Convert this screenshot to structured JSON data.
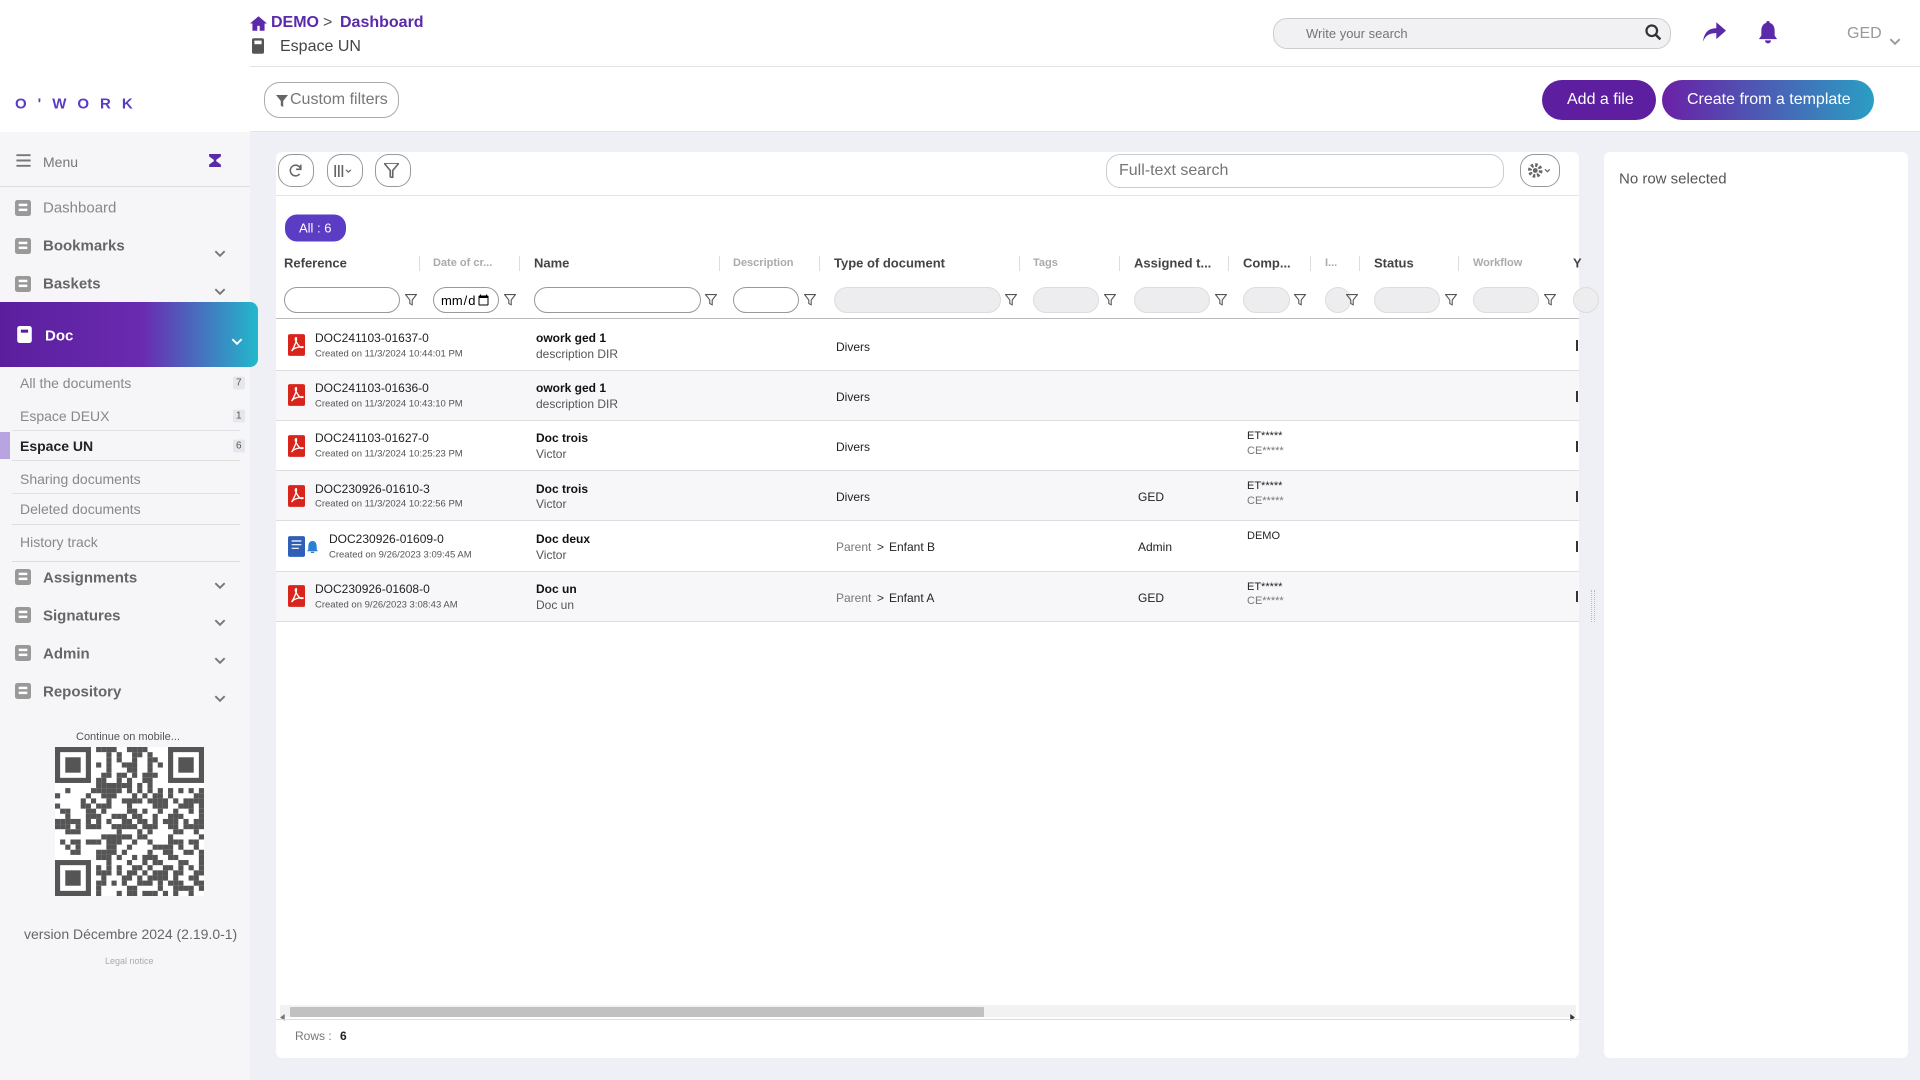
{
  "logo": "O'WORK",
  "header": {
    "breadcrumb": [
      "DEMO",
      ">",
      "Dashboard"
    ],
    "space": "Espace UN",
    "search_placeholder": "Write your search",
    "user": "GED"
  },
  "toolbar": {
    "custom_filters": "Custom filters",
    "add_file": "Add a file",
    "create_template": "Create from a template"
  },
  "sidebar": {
    "menu": "Menu",
    "items_before": [
      {
        "label": "Dashboard"
      },
      {
        "label": "Bookmarks"
      },
      {
        "label": "Baskets"
      }
    ],
    "active": "Doc",
    "doc_items": [
      {
        "label": "All the documents",
        "count": 7
      },
      {
        "label": "Espace DEUX",
        "count": 1
      },
      {
        "label": "Espace UN",
        "count": 6
      },
      {
        "label": "Sharing documents"
      },
      {
        "label": "Deleted documents"
      },
      {
        "label": "History track"
      }
    ],
    "items_after": [
      {
        "label": "Assignments"
      },
      {
        "label": "Signatures"
      },
      {
        "label": "Admin"
      },
      {
        "label": "Repository"
      }
    ],
    "mobile": "Continue on mobile...",
    "version": "version Décembre 2024 (2.19.0-1)",
    "legal": "Legal notice"
  },
  "grid": {
    "search_placeholder": "Full-text search",
    "all_badge": "All : 6",
    "separator": ">",
    "columns": [
      "Reference",
      "Date of cr...",
      "Name",
      "Description",
      "Type of document",
      "Tags",
      "Assigned t...",
      "Comp...",
      "I...",
      "Status",
      "Workflow",
      "Y"
    ],
    "rows": [
      {
        "reference": "DOC241103-01637-0",
        "created": "Created on 11/3/2024 10:44:01 PM",
        "name": "owork ged 1",
        "description": "description DIR",
        "type_path": [
          "Divers"
        ],
        "assigned": null,
        "company": [],
        "file_type": "pdf",
        "alert": false
      },
      {
        "reference": "DOC241103-01636-0",
        "created": "Created on 11/3/2024 10:43:10 PM",
        "name": "owork ged 1",
        "description": "description DIR",
        "type_path": [
          "Divers"
        ],
        "assigned": null,
        "company": [],
        "file_type": "pdf",
        "alert": false
      },
      {
        "reference": "DOC241103-01627-0",
        "created": "Created on 11/3/2024 10:25:23 PM",
        "name": "Doc trois",
        "description": "Victor",
        "type_path": [
          "Divers"
        ],
        "assigned": null,
        "company": [
          "ET*****",
          "CE*****"
        ],
        "file_type": "pdf",
        "alert": false
      },
      {
        "reference": "DOC230926-01610-3",
        "created": "Created on 11/3/2024 10:22:56 PM",
        "name": "Doc trois",
        "description": "Victor",
        "type_path": [
          "Divers"
        ],
        "assigned": "GED",
        "company": [
          "ET*****",
          "CE*****"
        ],
        "file_type": "pdf",
        "alert": false
      },
      {
        "reference": "DOC230926-01609-0",
        "created": "Created on 9/26/2023 3:09:45 AM",
        "name": "Doc deux",
        "description": "Victor",
        "type_path": [
          "Parent",
          "Enfant B"
        ],
        "assigned": "Admin",
        "company": [
          "DEMO"
        ],
        "file_type": "document",
        "alert": true
      },
      {
        "reference": "DOC230926-01608-0",
        "created": "Created on 9/26/2023 3:08:43 AM",
        "name": "Doc un",
        "description": "Doc un",
        "type_path": [
          "Parent",
          "Enfant A"
        ],
        "assigned": "GED",
        "company": [
          "ET*****",
          "CE*****"
        ],
        "file_type": "pdf",
        "alert": false
      }
    ],
    "rows_label": "Rows :",
    "row_count": 6
  },
  "detail": {
    "empty": "No row selected"
  }
}
